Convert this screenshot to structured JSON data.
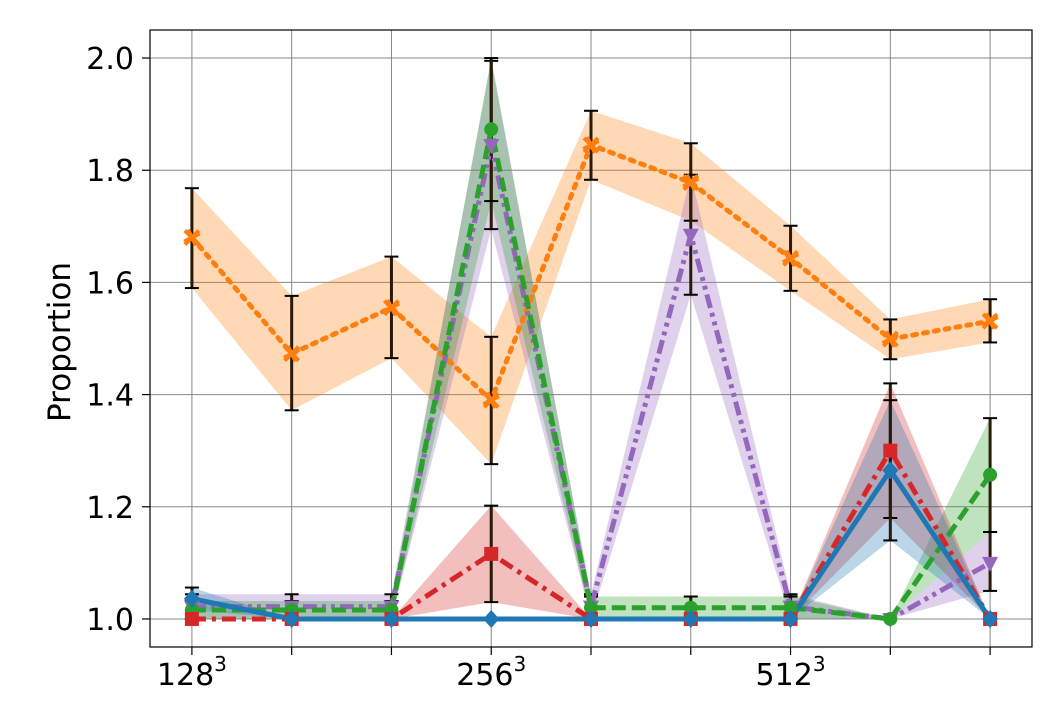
{
  "chart_data": {
    "type": "line",
    "ylabel": "Proportion",
    "xlabel": "",
    "xtick_labels": [
      {
        "base": "128",
        "sup": "3"
      },
      {
        "base": "",
        "sup": ""
      },
      {
        "base": "",
        "sup": ""
      },
      {
        "base": "256",
        "sup": "3"
      },
      {
        "base": "",
        "sup": ""
      },
      {
        "base": "",
        "sup": ""
      },
      {
        "base": "512",
        "sup": "3"
      },
      {
        "base": "",
        "sup": ""
      },
      {
        "base": "",
        "sup": ""
      }
    ],
    "x": [
      0,
      1,
      2,
      3,
      4,
      5,
      6,
      7,
      8
    ],
    "xlim": [
      -0.42,
      8.42
    ],
    "ylim": [
      0.95,
      2.05
    ],
    "yticks": [
      "1.0",
      "1.2",
      "1.4",
      "1.6",
      "1.8",
      "2.0"
    ],
    "grid": true,
    "series": [
      {
        "color": "#ff7f0e",
        "marker": "x-star",
        "dash": "dotted",
        "values": [
          1.68,
          1.473,
          1.555,
          1.39,
          1.845,
          1.778,
          1.643,
          1.499,
          1.531
        ],
        "lower": [
          1.59,
          1.372,
          1.465,
          1.276,
          1.783,
          1.71,
          1.585,
          1.463,
          1.493
        ],
        "upper": [
          1.768,
          1.576,
          1.646,
          1.503,
          1.906,
          1.848,
          1.701,
          1.534,
          1.57
        ],
        "errorbars": true
      },
      {
        "color": "#9467bd",
        "marker": "triangle-down",
        "dash": "dashdotdot",
        "values": [
          1.022,
          1.022,
          1.022,
          1.845,
          1.022,
          1.685,
          1.022,
          1.0,
          1.1
        ],
        "lower": [
          1.0,
          1.0,
          1.0,
          1.695,
          1.0,
          1.578,
          1.0,
          1.0,
          1.05
        ],
        "upper": [
          1.044,
          1.044,
          1.044,
          1.995,
          1.044,
          1.792,
          1.044,
          1.0,
          1.155
        ],
        "errorbars": true
      },
      {
        "color": "#2ca02c",
        "marker": "circle",
        "dash": "dashed",
        "values": [
          1.016,
          1.016,
          1.016,
          1.873,
          1.02,
          1.02,
          1.02,
          1.0,
          1.257
        ],
        "lower": [
          1.0,
          1.0,
          1.0,
          1.745,
          1.0,
          1.0,
          1.0,
          1.0,
          1.155
        ],
        "upper": [
          1.032,
          1.032,
          1.032,
          2.0,
          1.04,
          1.04,
          1.04,
          1.0,
          1.358
        ],
        "errorbars": true
      },
      {
        "color": "#d62728",
        "marker": "square",
        "dash": "dashdot",
        "values": [
          1.0,
          1.0,
          1.0,
          1.116,
          1.0,
          1.0,
          1.0,
          1.3,
          1.0
        ],
        "lower": [
          1.0,
          1.0,
          1.0,
          1.03,
          1.0,
          1.0,
          1.0,
          1.18,
          1.0
        ],
        "upper": [
          1.0,
          1.0,
          1.0,
          1.202,
          1.0,
          1.0,
          1.0,
          1.42,
          1.0
        ],
        "errorbars": true
      },
      {
        "color": "#1f77b4",
        "marker": "diamond",
        "dash": "solid",
        "values": [
          1.036,
          1.0,
          1.0,
          1.0,
          1.0,
          1.0,
          1.0,
          1.265,
          1.0
        ],
        "lower": [
          1.016,
          1.0,
          1.0,
          1.0,
          1.0,
          1.0,
          1.0,
          1.14,
          1.0
        ],
        "upper": [
          1.056,
          1.0,
          1.0,
          1.0,
          1.0,
          1.0,
          1.0,
          1.39,
          1.0
        ],
        "errorbars": true
      }
    ]
  }
}
